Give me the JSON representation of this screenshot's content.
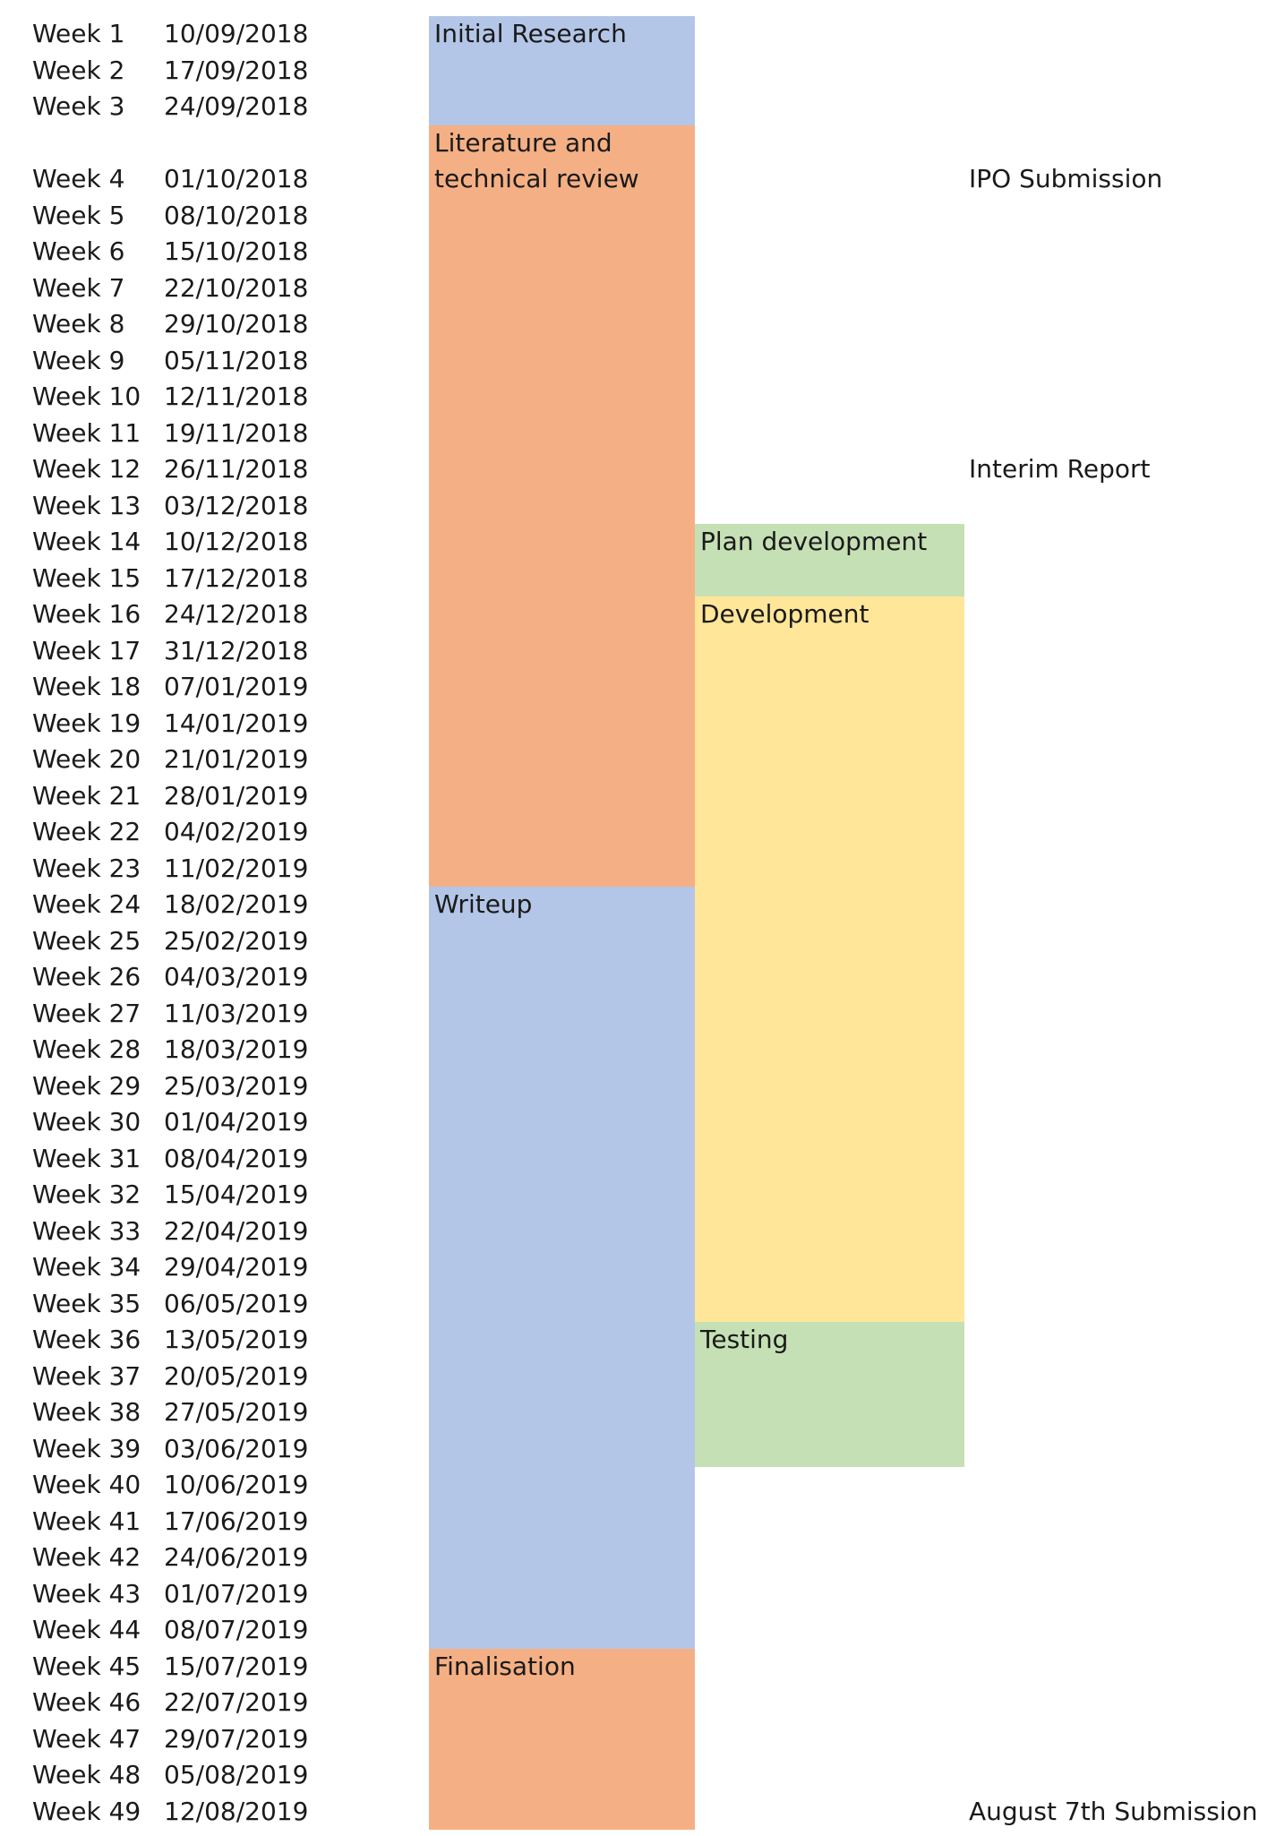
{
  "chart_data": {
    "type": "table",
    "weeks": [
      {
        "label": "Week 1",
        "date": "10/09/2018"
      },
      {
        "label": "Week 2",
        "date": "17/09/2018"
      },
      {
        "label": "Week 3",
        "date": "24/09/2018"
      },
      {
        "label": "Week 4",
        "date": "01/10/2018"
      },
      {
        "label": "Week 5",
        "date": "08/10/2018"
      },
      {
        "label": "Week 6",
        "date": "15/10/2018"
      },
      {
        "label": "Week 7",
        "date": "22/10/2018"
      },
      {
        "label": "Week 8",
        "date": "29/10/2018"
      },
      {
        "label": "Week 9",
        "date": "05/11/2018"
      },
      {
        "label": "Week 10",
        "date": "12/11/2018"
      },
      {
        "label": "Week 11",
        "date": "19/11/2018"
      },
      {
        "label": "Week 12",
        "date": "26/11/2018"
      },
      {
        "label": "Week 13",
        "date": "03/12/2018"
      },
      {
        "label": "Week 14",
        "date": "10/12/2018"
      },
      {
        "label": "Week 15",
        "date": "17/12/2018"
      },
      {
        "label": "Week 16",
        "date": "24/12/2018"
      },
      {
        "label": "Week 17",
        "date": "31/12/2018"
      },
      {
        "label": "Week 18",
        "date": "07/01/2019"
      },
      {
        "label": "Week 19",
        "date": "14/01/2019"
      },
      {
        "label": "Week 20",
        "date": "21/01/2019"
      },
      {
        "label": "Week 21",
        "date": "28/01/2019"
      },
      {
        "label": "Week 22",
        "date": "04/02/2019"
      },
      {
        "label": "Week 23",
        "date": "11/02/2019"
      },
      {
        "label": "Week 24",
        "date": "18/02/2019"
      },
      {
        "label": "Week 25",
        "date": "25/02/2019"
      },
      {
        "label": "Week 26",
        "date": "04/03/2019"
      },
      {
        "label": "Week 27",
        "date": "11/03/2019"
      },
      {
        "label": "Week 28",
        "date": "18/03/2019"
      },
      {
        "label": "Week 29",
        "date": "25/03/2019"
      },
      {
        "label": "Week 30",
        "date": "01/04/2019"
      },
      {
        "label": "Week 31",
        "date": "08/04/2019"
      },
      {
        "label": "Week 32",
        "date": "15/04/2019"
      },
      {
        "label": "Week 33",
        "date": "22/04/2019"
      },
      {
        "label": "Week 34",
        "date": "29/04/2019"
      },
      {
        "label": "Week 35",
        "date": "06/05/2019"
      },
      {
        "label": "Week 36",
        "date": "13/05/2019"
      },
      {
        "label": "Week 37",
        "date": "20/05/2019"
      },
      {
        "label": "Week 38",
        "date": "27/05/2019"
      },
      {
        "label": "Week 39",
        "date": "03/06/2019"
      },
      {
        "label": "Week 40",
        "date": "10/06/2019"
      },
      {
        "label": "Week 41",
        "date": "17/06/2019"
      },
      {
        "label": "Week 42",
        "date": "24/06/2019"
      },
      {
        "label": "Week 43",
        "date": "01/07/2019"
      },
      {
        "label": "Week 44",
        "date": "08/07/2019"
      },
      {
        "label": "Week 45",
        "date": "15/07/2019"
      },
      {
        "label": "Week 46",
        "date": "22/07/2019"
      },
      {
        "label": "Week 47",
        "date": "29/07/2019"
      },
      {
        "label": "Week 48",
        "date": "05/08/2019"
      },
      {
        "label": "Week 49",
        "date": "12/08/2019"
      }
    ],
    "tasks": [
      {
        "name": "Initial Research",
        "start_week": 1,
        "end_week": 3,
        "lane": 1,
        "color": "#b4c6e7"
      },
      {
        "name": "Literature and technical review",
        "start_week": 3.5,
        "end_week": 23,
        "lane": 1,
        "color": "#f4b084"
      },
      {
        "name": "Writeup",
        "start_week": 24,
        "end_week": 44,
        "lane": 1,
        "color": "#b4c6e7"
      },
      {
        "name": "Finalisation",
        "start_week": 45,
        "end_week": 49,
        "lane": 1,
        "color": "#f4b084"
      },
      {
        "name": "Plan development",
        "start_week": 14,
        "end_week": 15,
        "lane": 2,
        "color": "#c5e0b4"
      },
      {
        "name": "Development",
        "start_week": 16,
        "end_week": 35,
        "lane": 2,
        "color": "#ffe699"
      },
      {
        "name": "Testing",
        "start_week": 36,
        "end_week": 39,
        "lane": 2,
        "color": "#c5e0b4"
      }
    ],
    "milestones": [
      {
        "name": "IPO Submission",
        "week": 4
      },
      {
        "name": "Interim Report",
        "week": 12
      },
      {
        "name": "August 7th Submission",
        "week": 49
      }
    ]
  }
}
